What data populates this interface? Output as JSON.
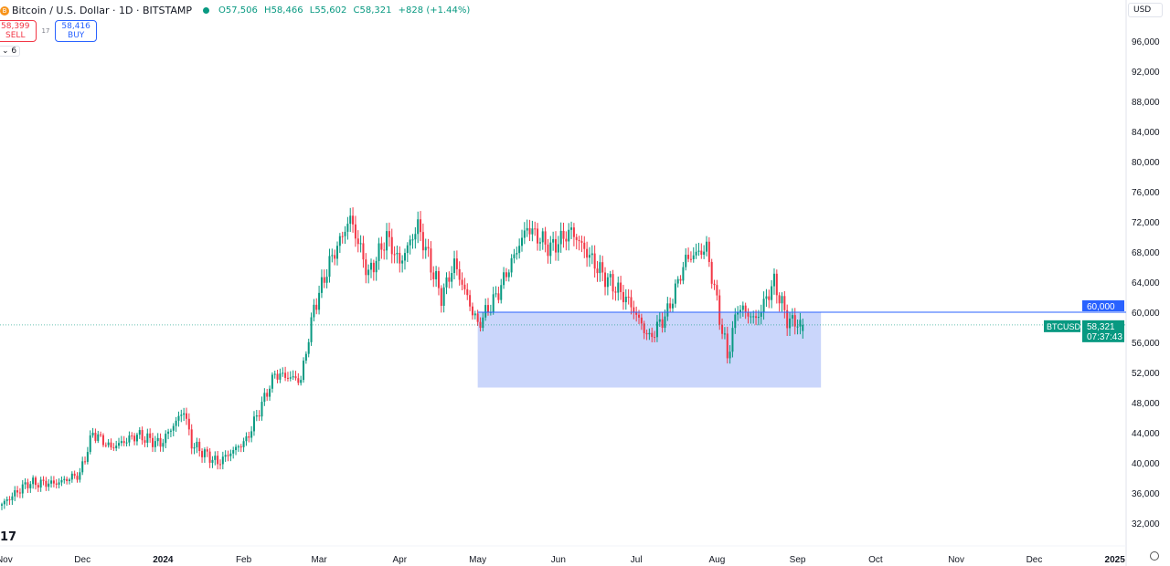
{
  "header": {
    "symbol_title": "Bitcoin / U.S. Dollar · 1D · BITSTAMP",
    "coin_glyph": "B",
    "open": "O57,506",
    "high": "H58,466",
    "low": "L55,602",
    "close": "C58,321",
    "change": "+828 (+1.44%)",
    "sell_price": "58,399",
    "sell_label": "SELL",
    "spread": "17",
    "buy_price": "58,416",
    "buy_label": "BUY",
    "indicators_toggle": "⌄ 6",
    "currency": "USD"
  },
  "colors": {
    "up": "#089981",
    "down": "#f23645",
    "zone": "#c1cffa",
    "line": "#2962ff"
  },
  "logo_text": "17",
  "chart_data": {
    "type": "candlestick",
    "symbol": "BTCUSD",
    "interval": "1D",
    "ylim": [
      30000,
      98000
    ],
    "y_ticks": [
      32000,
      36000,
      40000,
      44000,
      48000,
      52000,
      56000,
      60000,
      64000,
      68000,
      72000,
      76000,
      80000,
      84000,
      88000,
      92000,
      96000
    ],
    "x_ticks": [
      {
        "date": "2023-11-01",
        "label": "Nov"
      },
      {
        "date": "2023-12-01",
        "label": "Dec"
      },
      {
        "date": "2024-01-01",
        "label": "2024",
        "bold": true
      },
      {
        "date": "2024-02-01",
        "label": "Feb"
      },
      {
        "date": "2024-03-01",
        "label": "Mar"
      },
      {
        "date": "2024-04-01",
        "label": "Apr"
      },
      {
        "date": "2024-05-01",
        "label": "May"
      },
      {
        "date": "2024-06-01",
        "label": "Jun"
      },
      {
        "date": "2024-07-01",
        "label": "Jul"
      },
      {
        "date": "2024-08-01",
        "label": "Aug"
      },
      {
        "date": "2024-09-01",
        "label": "Sep"
      },
      {
        "date": "2024-10-01",
        "label": "Oct"
      },
      {
        "date": "2024-11-01",
        "label": "Nov"
      },
      {
        "date": "2024-12-01",
        "label": "Dec"
      },
      {
        "date": "2025-01-01",
        "label": "2025",
        "bold": true
      }
    ],
    "x_start": "2023-10-31",
    "close_keypoints": [
      [
        "2023-10-31",
        34500
      ],
      [
        "2023-11-10",
        37300
      ],
      [
        "2023-11-21",
        37300
      ],
      [
        "2023-11-30",
        38500
      ],
      [
        "2023-12-05",
        44000
      ],
      [
        "2023-12-12",
        42000
      ],
      [
        "2023-12-22",
        43700
      ],
      [
        "2023-12-31",
        42500
      ],
      [
        "2024-01-09",
        47000
      ],
      [
        "2024-01-12",
        42500
      ],
      [
        "2024-01-22",
        40000
      ],
      [
        "2024-02-02",
        43000
      ],
      [
        "2024-02-13",
        51800
      ],
      [
        "2024-02-23",
        51000
      ],
      [
        "2024-02-28",
        60500
      ],
      [
        "2024-03-05",
        66500
      ],
      [
        "2024-03-13",
        72500
      ],
      [
        "2024-03-20",
        65000
      ],
      [
        "2024-03-27",
        70000
      ],
      [
        "2024-04-01",
        66500
      ],
      [
        "2024-04-08",
        71500
      ],
      [
        "2024-04-17",
        62000
      ],
      [
        "2024-04-22",
        66500
      ],
      [
        "2024-05-01",
        58300
      ],
      [
        "2024-05-08",
        62000
      ],
      [
        "2024-05-20",
        71300
      ],
      [
        "2024-05-29",
        68500
      ],
      [
        "2024-06-06",
        70800
      ],
      [
        "2024-06-18",
        65000
      ],
      [
        "2024-06-28",
        61500
      ],
      [
        "2024-07-06",
        56500
      ],
      [
        "2024-07-13",
        60000
      ],
      [
        "2024-07-20",
        67000
      ],
      [
        "2024-07-28",
        68500
      ],
      [
        "2024-08-05",
        54000
      ],
      [
        "2024-08-09",
        60800
      ],
      [
        "2024-08-16",
        59000
      ],
      [
        "2024-08-23",
        64000
      ],
      [
        "2024-08-28",
        59000
      ],
      [
        "2024-09-03",
        58321
      ]
    ],
    "zone": {
      "from": "2024-05-01",
      "to": "2024-09-10",
      "low": 50000,
      "high": 60000
    },
    "horizontal_line": {
      "from": "2024-05-01",
      "price": 60000,
      "label": "60,000"
    },
    "last_price": {
      "price": 58321,
      "label": "58,321",
      "countdown": "07:37:43",
      "tag": "BTCUSD"
    }
  }
}
